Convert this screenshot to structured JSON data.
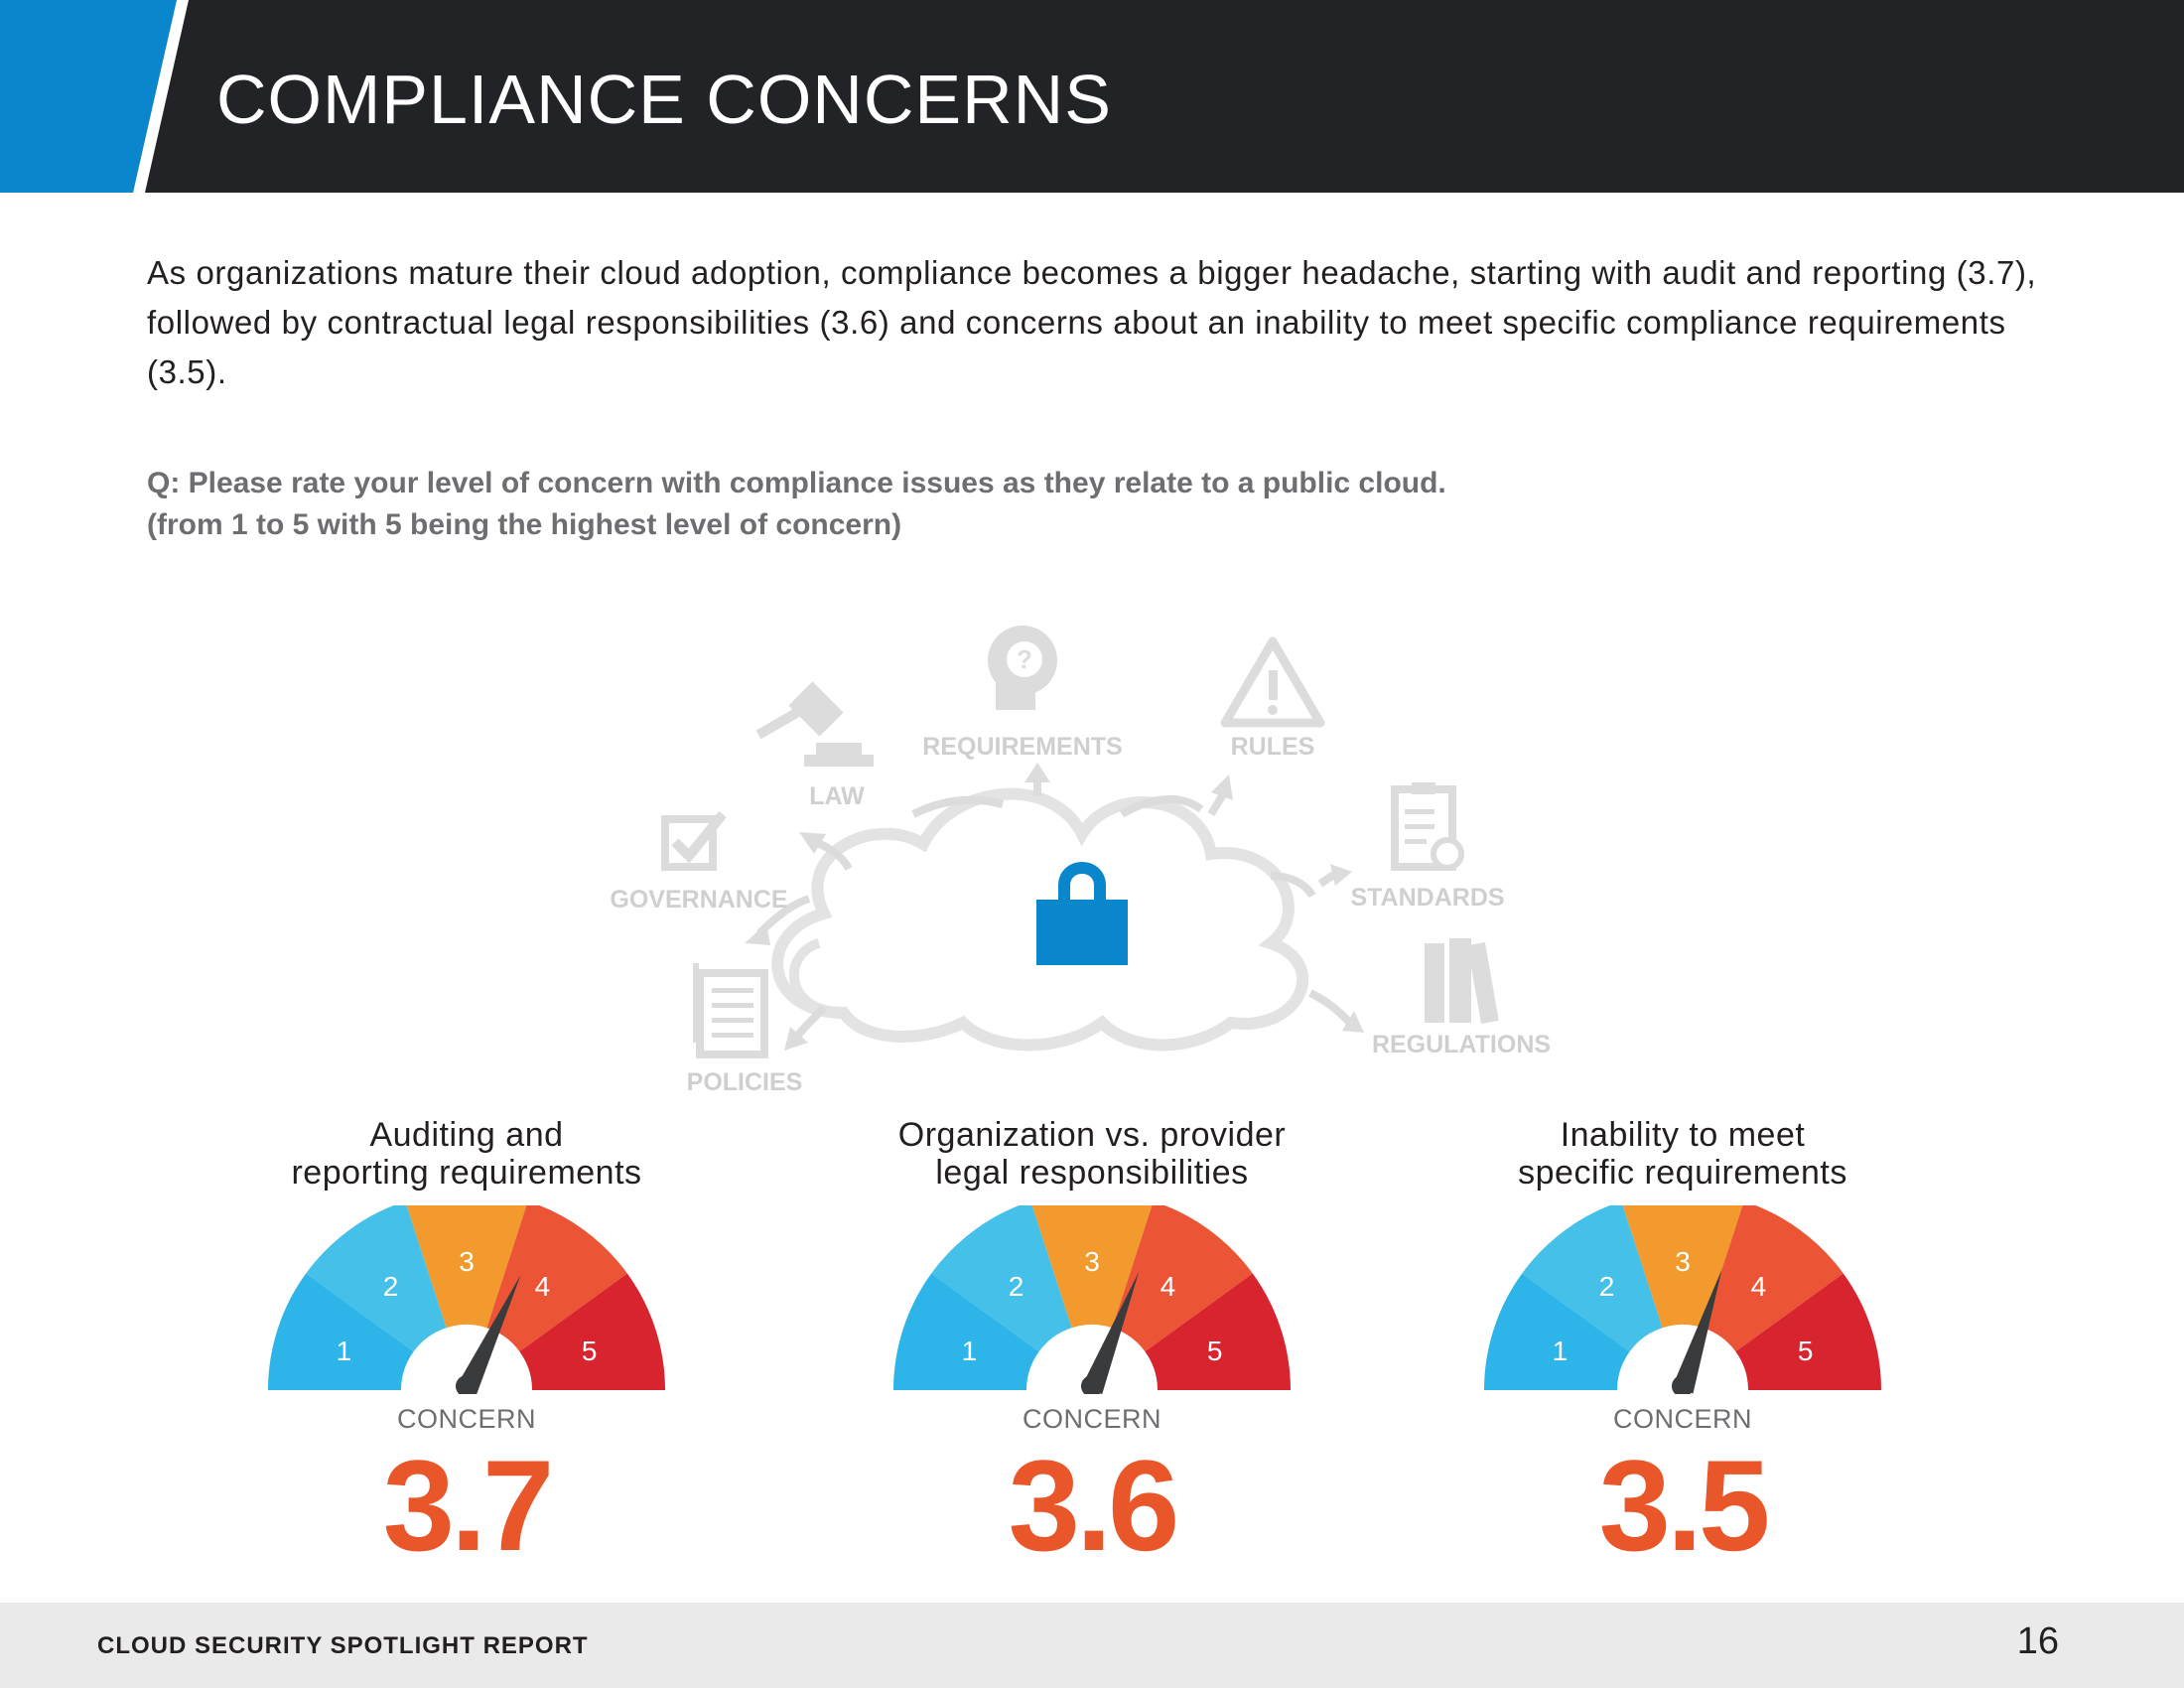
{
  "header": {
    "title": "COMPLIANCE CONCERNS",
    "accent_color": "#0a86cc",
    "dark_color": "#212326"
  },
  "intro": "As organizations mature their cloud adoption, compliance becomes a bigger headache, starting with audit and reporting (3.7), followed by contractual legal responsibilities (3.6) and concerns about an inability to meet specific compliance requirements (3.5).",
  "question": {
    "line1": "Q: Please rate your level of concern with compliance issues as they relate to a public cloud.",
    "line2": "(from 1 to 5 with 5 being the highest level of concern)"
  },
  "illustration": {
    "labels": {
      "requirements": "REQUIREMENTS",
      "rules": "RULES",
      "law": "LAW",
      "governance": "GOVERNANCE",
      "standards": "STANDARDS",
      "policies": "POLICIES",
      "regulations": "REGULATIONS"
    },
    "lock_color": "#0a86cc"
  },
  "gauge_labels": [
    "1",
    "2",
    "3",
    "4",
    "5"
  ],
  "gauge_colors": [
    "#2db4e8",
    "#45c0e8",
    "#f29a2e",
    "#ec5436",
    "#d7242f"
  ],
  "gauges": [
    {
      "title_line1": "Auditing and",
      "title_line2": "reporting requirements",
      "concern_label": "CONCERN",
      "score_text": "3.7",
      "value": 3.7
    },
    {
      "title_line1": "Organization vs. provider",
      "title_line2": "legal responsibilities",
      "concern_label": "CONCERN",
      "score_text": "3.6",
      "value": 3.6
    },
    {
      "title_line1": "Inability to meet",
      "title_line2": "specific requirements",
      "concern_label": "CONCERN",
      "score_text": "3.5",
      "value": 3.5
    }
  ],
  "footer": {
    "report_name": "CLOUD SECURITY SPOTLIGHT REPORT",
    "page_number": "16"
  }
}
